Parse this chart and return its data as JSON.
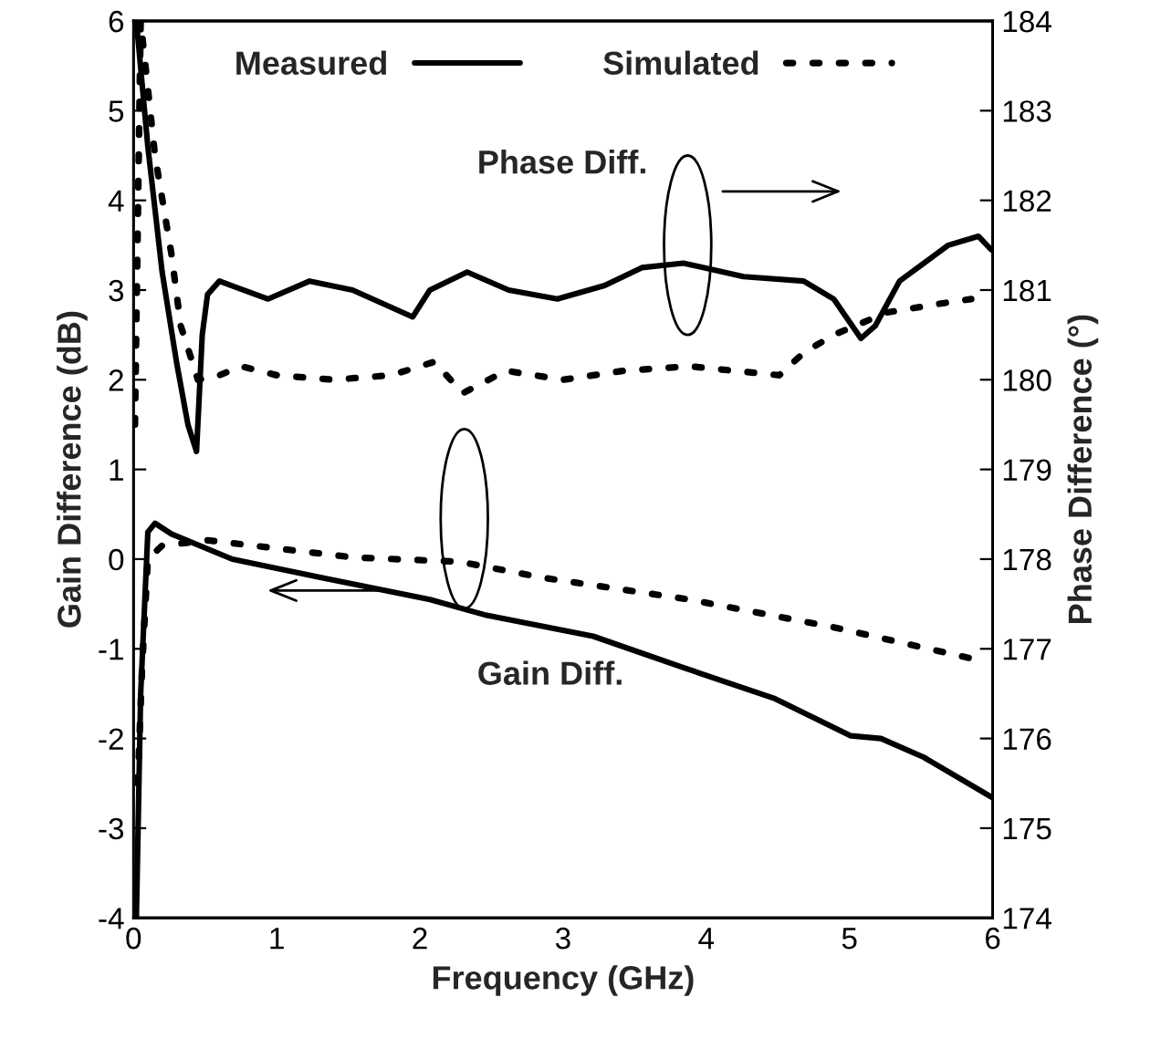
{
  "chart_data": {
    "type": "line",
    "xlabel": "Frequency (GHz)",
    "ylabel": "Gain Difference (dB)",
    "y2label": "Phase Difference (°)",
    "xlim": [
      0,
      6
    ],
    "xticks": [
      0,
      1,
      2,
      3,
      4,
      5,
      6
    ],
    "ylim": [
      -4,
      6
    ],
    "yticks": [
      -4,
      -3,
      -2,
      -1,
      0,
      1,
      2,
      3,
      4,
      5,
      6
    ],
    "y2lim": [
      174,
      184
    ],
    "y2ticks": [
      174,
      175,
      176,
      177,
      178,
      179,
      180,
      181,
      182,
      183,
      184
    ],
    "legend": "top",
    "grid": false,
    "annotations": [
      "Phase Diff.",
      "Gain Diff."
    ],
    "series": [
      {
        "name": "Measured",
        "color": "#000000",
        "line_style": "solid",
        "x": [
          0.02,
          0.05,
          0.1,
          0.15,
          0.265,
          0.69,
          1.32,
          2.07,
          2.45,
          3.21,
          3.84,
          4.47,
          5.01,
          5.22,
          5.52,
          6.0
        ],
        "values": [
          -4,
          -1.5,
          0.3,
          0.4,
          0.28,
          0.0,
          -0.21,
          -0.45,
          -0.62,
          -0.86,
          -1.21,
          -1.55,
          -1.97,
          -2.0,
          -2.21,
          -2.66
        ]
      },
      {
        "name": "Simulated",
        "color": "#000000",
        "line_style": "dotted",
        "x": [
          0.03,
          0.06,
          0.1,
          0.2,
          0.52,
          1.53,
          2.28,
          2.87,
          3.88,
          4.89,
          5.94
        ],
        "values": [
          -2.5,
          -1.2,
          0.0,
          0.15,
          0.21,
          0.02,
          -0.03,
          -0.21,
          -0.45,
          -0.76,
          -1.14
        ]
      },
      {
        "color": "#000000",
        "line_style": "solid",
        "axis": "y2",
        "x": [
          0.02,
          0.1,
          0.2,
          0.3,
          0.38,
          0.44,
          0.48,
          0.517,
          0.6,
          0.94,
          1.23,
          1.53,
          1.95,
          2.07,
          2.33,
          2.62,
          2.96,
          3.29,
          3.55,
          3.84,
          4.26,
          4.68,
          4.89,
          5.08,
          5.18,
          5.35,
          5.52,
          5.69,
          5.9,
          5.99
        ],
        "values": [
          184,
          182.6,
          181.2,
          180.2,
          179.5,
          179.2,
          180.5,
          180.95,
          181.1,
          180.9,
          181.1,
          181.0,
          180.7,
          181.0,
          181.2,
          181.0,
          180.9,
          181.05,
          181.25,
          181.3,
          181.15,
          181.1,
          180.9,
          180.46,
          180.6,
          181.1,
          181.3,
          181.5,
          181.6,
          181.45
        ]
      },
      {
        "color": "#000000",
        "line_style": "dotted",
        "axis": "y2",
        "x": [
          0.01,
          0.05,
          0.15,
          0.265,
          0.33,
          0.45,
          0.6,
          0.75,
          1.0,
          1.4,
          1.8,
          2.1,
          2.3,
          2.6,
          3.0,
          3.42,
          3.88,
          4.51,
          4.68,
          4.89,
          5.26,
          5.64,
          5.85
        ],
        "values": [
          179.5,
          184,
          182.5,
          181.4,
          180.6,
          180.0,
          180.05,
          180.15,
          180.05,
          180.0,
          180.05,
          180.2,
          179.85,
          180.1,
          180.0,
          180.1,
          180.15,
          180.05,
          180.3,
          180.5,
          180.75,
          180.85,
          180.9
        ]
      }
    ]
  }
}
